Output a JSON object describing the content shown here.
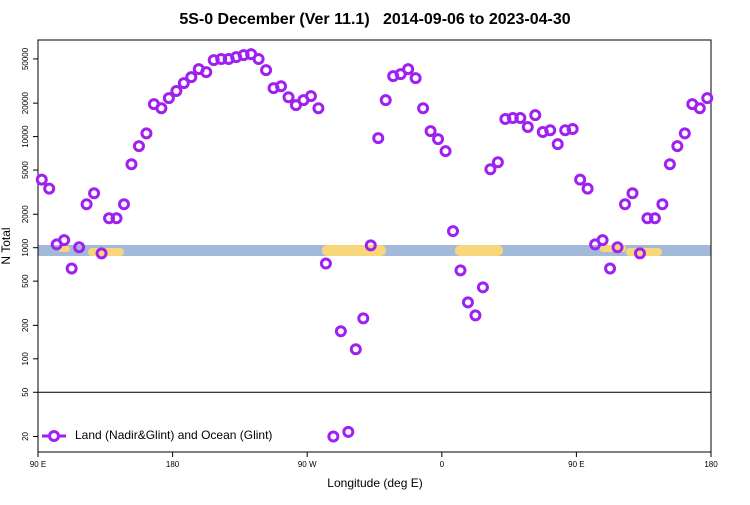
{
  "chart_data": {
    "type": "scatter",
    "title": "5S-0 December (Ver 11.1)   2014-09-06 to 2023-04-30",
    "xlabel": "Longitude (deg E)",
    "ylabel": "N Total",
    "xlim": [
      -270,
      180
    ],
    "xticks": [
      {
        "value": -270,
        "label": "90 E"
      },
      {
        "value": -180,
        "label": "180"
      },
      {
        "value": -90,
        "label": "90 W"
      },
      0,
      {
        "value": 90,
        "label": "90 E"
      },
      {
        "value": 180,
        "label": "180"
      }
    ],
    "ylim": [
      14.5,
      74000
    ],
    "yscale": "log",
    "yticks": [
      20,
      50,
      100,
      200,
      500,
      1000,
      2000,
      5000,
      10000,
      20000,
      50000
    ],
    "reference_line": 50,
    "legend": "bottom-left",
    "series": [
      {
        "name": "Land (Nadir&Glint) and Ocean (Glint)",
        "color": "#a020f0",
        "x": [
          -267.5,
          -262.5,
          -257.5,
          -252.5,
          -247.5,
          -242.5,
          -237.5,
          -232.5,
          -227.5,
          -222.5,
          -217.5,
          -212.5,
          -207.5,
          -202.5,
          -197.5,
          -192.5,
          -187.5,
          -182.5,
          -177.5,
          -172.5,
          -167.5,
          -162.5,
          -157.5,
          -152.5,
          -147.5,
          -142.5,
          -137.5,
          -132.5,
          -127.5,
          -122.5,
          -117.5,
          -112.5,
          -107.5,
          -102.5,
          -97.5,
          -92.5,
          -87.5,
          -82.5,
          -77.5,
          -72.5,
          -67.5,
          -62.5,
          -57.5,
          -52.5,
          -47.5,
          -42.5,
          -37.5,
          -32.5,
          -27.5,
          -22.5,
          -17.5,
          -12.5,
          -7.5,
          -2.5,
          2.5,
          7.5,
          12.5,
          17.5,
          22.5,
          27.5,
          32.5,
          37.5,
          42.5,
          47.5,
          52.5,
          57.5,
          62.5,
          67.5,
          72.5,
          77.5,
          82.5,
          87.5,
          92.5,
          97.5,
          102.5,
          107.5,
          112.5,
          117.5,
          122.5,
          127.5,
          132.5,
          137.5,
          142.5,
          147.5,
          152.5,
          157.5,
          162.5,
          167.5,
          172.5,
          177.5
        ],
        "values": [
          4100,
          3400,
          1070,
          1170,
          650,
          1010,
          2460,
          3090,
          890,
          1840,
          1840,
          2460,
          5640,
          8200,
          10700,
          19600,
          18000,
          22200,
          25700,
          30300,
          34300,
          40500,
          38000,
          48800,
          49900,
          49900,
          51900,
          54100,
          55200,
          49900,
          39600,
          27300,
          28400,
          22600,
          19200,
          21300,
          23100,
          18000,
          720,
          20,
          177,
          22,
          122,
          231,
          1050,
          9680,
          21300,
          35000,
          36500,
          40500,
          33600,
          18000,
          11200,
          9480,
          7390,
          1410,
          625,
          322,
          246,
          440,
          5080,
          5880,
          14400,
          14700,
          14700,
          12200,
          15600,
          11000,
          11400,
          8550,
          11400,
          11700,
          4100,
          3400,
          1070,
          1170,
          650,
          1010,
          2460,
          3090,
          890,
          1840,
          1840,
          2460,
          5640,
          8200,
          10700,
          19600,
          18000,
          22200
        ]
      }
    ]
  }
}
